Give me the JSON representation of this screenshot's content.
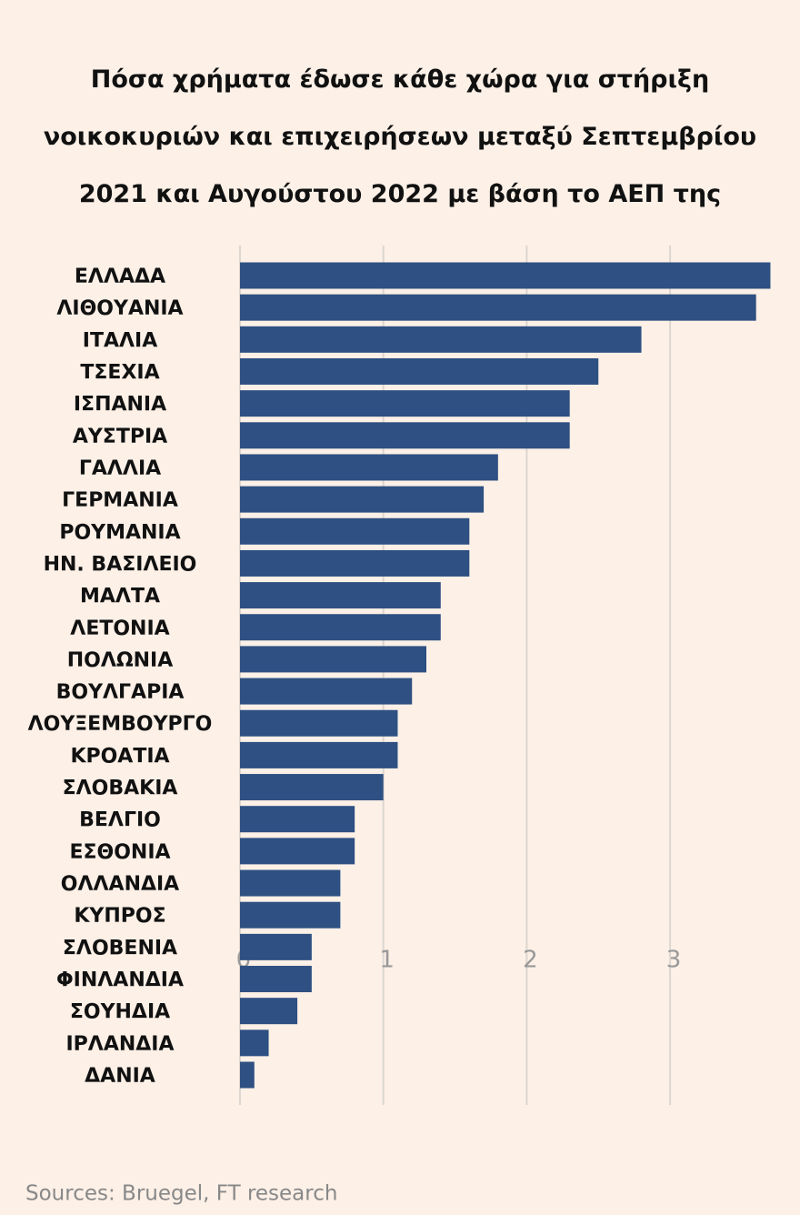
{
  "chart_data": {
    "type": "bar",
    "orientation": "horizontal",
    "title": "Πόσα χρήματα έδωσε κάθε χώρα για στήριξη νοικοκυριών και επιχειρήσεων μεταξύ Σεπτεμβρίου 2021 και Αυγούστου 2022 με βάση το ΑΕΠ της",
    "source": "Sources: Bruegel, FT research",
    "categories": [
      "ΕΛΛΑΔΑ",
      "ΛΙΘΟΥΑΝΙΑ",
      "ΙΤΑΛΙΑ",
      "ΤΣΕΧΙΑ",
      "ΙΣΠΑΝΙΑ",
      "ΑΥΣΤΡΙΑ",
      "ΓΑΛΛΙΑ",
      "ΓΕΡΜΑΝΙΑ",
      "ΡΟΥΜΑΝΙΑ",
      "ΗΝ. ΒΑΣΙΛΕΙΟ",
      "ΜΑΛΤΑ",
      "ΛΕΤΟΝΙΑ",
      "ΠΟΛΩΝΙΑ",
      "ΒΟΥΛΓΑΡΙΑ",
      "ΛΟΥΞΕΜΒΟΥΡΓΟ",
      "ΚΡΟΑΤΙΑ",
      "ΣΛΟΒΑΚΙΑ",
      "ΒΕΛΓΙΟ",
      "ΕΣΘΟΝΙΑ",
      "ΟΛΛΑΝΔΙΑ",
      "ΚΥΠΡΟΣ",
      "ΣΛΟΒΕΝΙΑ",
      "ΦΙΝΛΑΝΔΙΑ",
      "ΣΟΥΗΔΙΑ",
      "ΙΡΛΑΝΔΙΑ",
      "ΔΑΝΙΑ"
    ],
    "values": [
      3.7,
      3.6,
      2.8,
      2.5,
      2.3,
      2.3,
      1.8,
      1.7,
      1.6,
      1.6,
      1.4,
      1.4,
      1.3,
      1.2,
      1.1,
      1.1,
      1.0,
      0.8,
      0.8,
      0.7,
      0.7,
      0.5,
      0.5,
      0.4,
      0.2,
      0.1
    ],
    "color": "#2e5082",
    "xlim": [
      0,
      3.9
    ],
    "xticks": [
      0,
      1,
      2,
      3
    ],
    "grid": true
  }
}
